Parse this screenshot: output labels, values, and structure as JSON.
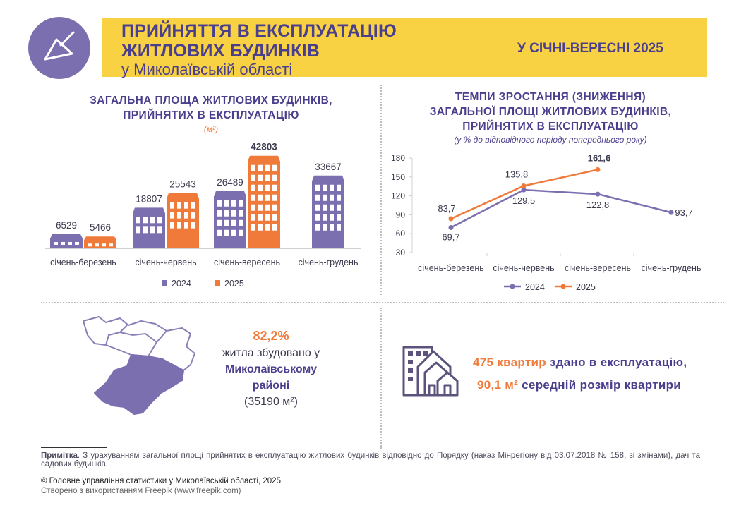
{
  "header": {
    "title_line1": "ПРИЙНЯТТЯ В ЕКСПЛУАТАЦІЮ",
    "title_line2": "ЖИТЛОВИХ БУДИНКІВ",
    "title_line3": "у Миколаївській області",
    "period": "У СІЧНІ-ВЕРЕСНІ 2025",
    "icon": "trowel-icon"
  },
  "left_chart": {
    "title_line1": "ЗАГАЛЬНА ПЛОЩА ЖИТЛОВИХ БУДИНКІВ,",
    "title_line2": "ПРИЙНЯТИХ В ЕКСПЛУАТАЦІЮ",
    "unit": "(м²)"
  },
  "right_chart": {
    "title_line1": "ТЕМПИ ЗРОСТАННЯ (ЗНИЖЕННЯ)",
    "title_line2": "ЗАГАЛЬНОЇ ПЛОЩІ ЖИТЛОВИХ БУДИНКІВ,",
    "title_line3": "ПРИЙНЯТИХ В ЕКСПЛУАТАЦІЮ",
    "subtitle": "(у % до відповідного періоду попереднього року)"
  },
  "chart_data": [
    {
      "type": "bar",
      "categories": [
        "січень-березень",
        "січень-червень",
        "січень-вересень",
        "січень-грудень"
      ],
      "series": [
        {
          "name": "2024",
          "values": [
            6529,
            18807,
            26489,
            33667
          ],
          "color": "#7c6fb0"
        },
        {
          "name": "2025",
          "values": [
            5466,
            25543,
            42803,
            null
          ],
          "color": "#f07a3a"
        }
      ],
      "ylim": [
        0,
        45000
      ],
      "legend": "bottom"
    },
    {
      "type": "line",
      "categories": [
        "січень-березень",
        "січень-червень",
        "січень-вересень",
        "січень-грудень"
      ],
      "series": [
        {
          "name": "2024",
          "values": [
            69.7,
            129.5,
            122.8,
            93.7
          ],
          "labels": [
            "69,7",
            "129,5",
            "122,8",
            "93,7"
          ],
          "color": "#7c6fb0"
        },
        {
          "name": "2025",
          "values": [
            83.7,
            135.8,
            161.6,
            null
          ],
          "labels": [
            "83,7",
            "135,8",
            "161,6",
            ""
          ],
          "color": "#f07a3a"
        }
      ],
      "yticks": [
        "30",
        "60",
        "90",
        "120",
        "150",
        "180"
      ],
      "ylim": [
        30,
        180
      ],
      "grid": false,
      "legend": "bottom"
    }
  ],
  "region": {
    "percent": "82,2%",
    "line1": "житла збудовано у",
    "line2": "Миколаївському",
    "line3": "районі",
    "area": "(35190 м²)"
  },
  "apartments": {
    "count_text": "475 квартир",
    "count_rest": " здано в експлуатацію,",
    "size_text": "90,1 м²",
    "size_rest": " середній розмір квартири"
  },
  "note": {
    "label": "Примітка",
    "text": ". З урахуванням загальної площі прийнятих в експлуатацію житлових будинків відповідно до Порядку (наказ Мінрегіону від 03.07.2018 № 158, зі змінами), дач та садових будинків."
  },
  "footer": {
    "copyright": "© Головне управління статистики у Миколаївській області, 2025",
    "credit": "Створено з використанням Freepik (www.freepik.com)"
  }
}
